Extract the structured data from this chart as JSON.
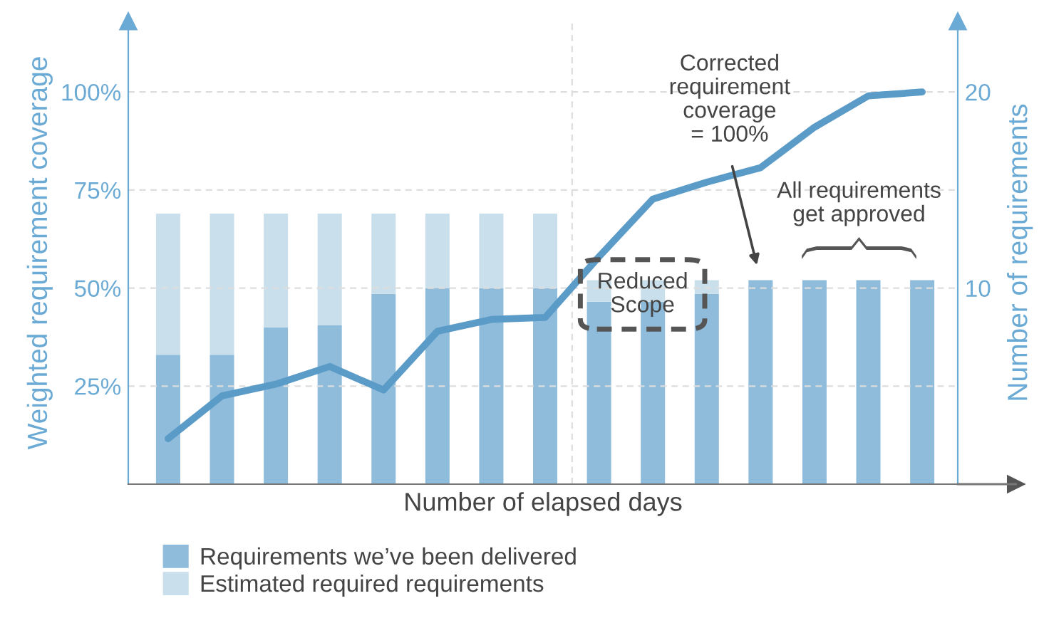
{
  "chart_data": {
    "type": "bar",
    "stacked": true,
    "xlabel": "Number of elapsed days",
    "ylabel": "Weighted requirement coverage",
    "y2label": "Number of requirements",
    "categories": [
      null,
      null,
      null,
      null,
      null,
      null,
      null,
      null,
      null,
      null,
      null,
      null,
      null,
      null,
      null
    ],
    "series": [
      {
        "name": "Requirements we’ve been delivered",
        "axis": "y2",
        "color": "#8fbcdb",
        "values": [
          6.6,
          6.6,
          8.0,
          8.1,
          9.7,
          10,
          10,
          10,
          9.3,
          9.3,
          9.7,
          10.4,
          10.4,
          10.4,
          10.4
        ]
      },
      {
        "name": "Estimated required requirements",
        "axis": "y2",
        "color": "#c9dfec",
        "values": [
          7.2,
          7.2,
          5.8,
          5.7,
          4.1,
          3.8,
          3.8,
          3.8,
          1.1,
          1.1,
          0.7,
          0,
          0,
          0,
          0
        ]
      },
      {
        "type": "line",
        "color": "#5b9bc8",
        "values": [
          11.6,
          22.5,
          25.5,
          30,
          24,
          39,
          42,
          42.5,
          58,
          72.7,
          77,
          80.7,
          91,
          99,
          100
        ]
      }
    ],
    "ylim": [
      0,
      118
    ],
    "yticks": [
      {
        "value": 25,
        "label": "25%"
      },
      {
        "value": 50,
        "label": "50%"
      },
      {
        "value": 75,
        "label": "75%"
      },
      {
        "value": 100,
        "label": "100%"
      }
    ],
    "y2lim": [
      0,
      23.6
    ],
    "y2ticks": [
      10,
      20
    ],
    "annotations": [
      "Reduced\nScope",
      "Corrected\nrequirement\ncoverage\n= 100%",
      "All requirements\nget approved"
    ],
    "grid": "y",
    "legend": "bottom",
    "tick_labels": "y"
  }
}
